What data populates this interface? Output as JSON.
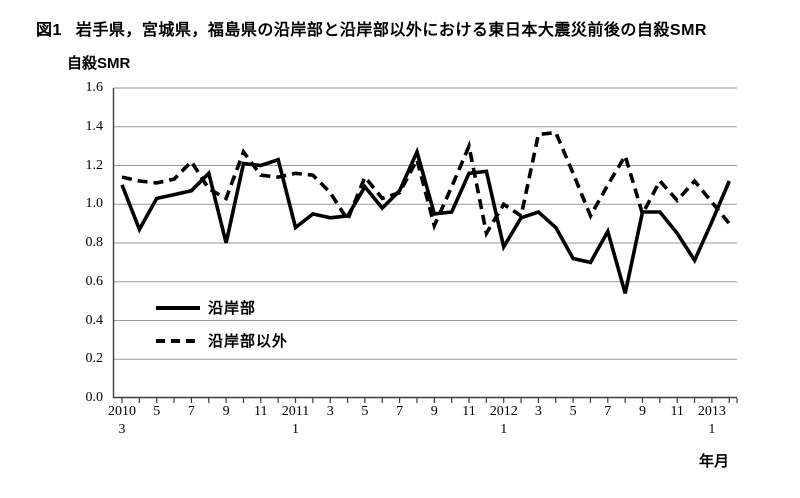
{
  "figure": {
    "caption_prefix": "図1",
    "caption": "岩手県，宮城県，福島県の沿岸部と沿岸部以外における東日本大震災前後の自殺SMR",
    "y_axis_title": "自殺SMR",
    "x_axis_title": "年月"
  },
  "chart_data": {
    "type": "line",
    "title": "岩手県，宮城県，福島県の沿岸部と沿岸部以外における東日本大震災前後の自殺SMR",
    "ylabel": "自殺SMR",
    "xlabel": "年月",
    "ylim": [
      0.0,
      1.6
    ],
    "y_ticks": [
      "0.0",
      "0.2",
      "0.4",
      "0.6",
      "0.8",
      "1.0",
      "1.2",
      "1.4",
      "1.6"
    ],
    "grid": "horizontal",
    "legend_position": "inside-lower-left",
    "line_color": "#000000",
    "grid_color": "#9a9a9a",
    "axis_color": "#3c3c3c",
    "x": [
      "2010/3",
      "2010/4",
      "2010/5",
      "2010/6",
      "2010/7",
      "2010/8",
      "2010/9",
      "2010/10",
      "2010/11",
      "2010/12",
      "2011/1",
      "2011/2",
      "2011/3",
      "2011/4",
      "2011/5",
      "2011/6",
      "2011/7",
      "2011/8",
      "2011/9",
      "2011/10",
      "2011/11",
      "2011/12",
      "2012/1",
      "2012/2",
      "2012/3",
      "2012/4",
      "2012/5",
      "2012/6",
      "2012/7",
      "2012/8",
      "2012/9",
      "2012/10",
      "2012/11",
      "2012/12",
      "2013/1",
      "2013/2"
    ],
    "x_tick_rows": [
      {
        "pos": 0,
        "label": "2010",
        "sub": "3"
      },
      {
        "pos": 2,
        "label": "5"
      },
      {
        "pos": 4,
        "label": "7"
      },
      {
        "pos": 6,
        "label": "9"
      },
      {
        "pos": 8,
        "label": "11"
      },
      {
        "pos": 10,
        "label": "2011",
        "sub": "1"
      },
      {
        "pos": 12,
        "label": "3"
      },
      {
        "pos": 14,
        "label": "5"
      },
      {
        "pos": 16,
        "label": "7"
      },
      {
        "pos": 18,
        "label": "9"
      },
      {
        "pos": 20,
        "label": "11"
      },
      {
        "pos": 22,
        "label": "2012",
        "sub": "1"
      },
      {
        "pos": 24,
        "label": "3"
      },
      {
        "pos": 26,
        "label": "5"
      },
      {
        "pos": 28,
        "label": "7"
      },
      {
        "pos": 30,
        "label": "9"
      },
      {
        "pos": 32,
        "label": "11"
      },
      {
        "pos": 34,
        "label": "2013",
        "sub": "1"
      }
    ],
    "series": [
      {
        "name": "沿岸部",
        "style": "solid",
        "values": [
          1.1,
          0.87,
          1.03,
          1.05,
          1.07,
          1.16,
          0.8,
          1.21,
          1.2,
          1.23,
          0.88,
          0.95,
          0.93,
          0.94,
          1.09,
          0.98,
          1.07,
          1.27,
          0.95,
          0.96,
          1.16,
          1.17,
          0.78,
          0.93,
          0.96,
          0.88,
          0.72,
          0.7,
          0.86,
          0.54,
          0.96,
          0.96,
          0.85,
          0.71,
          0.91,
          1.12
        ]
      },
      {
        "name": "沿岸部以外",
        "style": "dashed",
        "values": [
          1.14,
          1.12,
          1.11,
          1.13,
          1.22,
          1.08,
          1.03,
          1.27,
          1.15,
          1.14,
          1.16,
          1.15,
          1.06,
          0.92,
          1.14,
          1.03,
          1.06,
          1.23,
          0.89,
          1.09,
          1.3,
          0.85,
          1.0,
          0.94,
          1.36,
          1.37,
          1.16,
          0.94,
          1.1,
          1.25,
          0.95,
          1.12,
          1.02,
          1.12,
          1.01,
          0.9
        ]
      }
    ]
  }
}
